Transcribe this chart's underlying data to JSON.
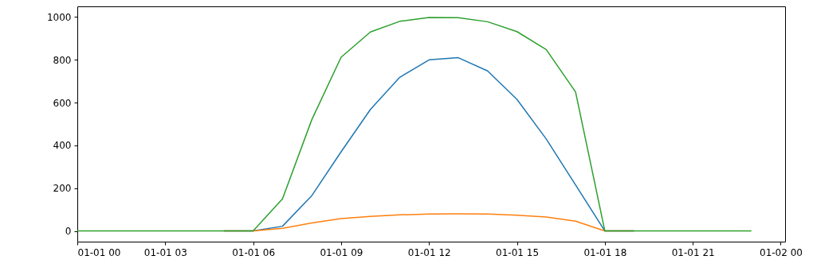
{
  "chart_data": {
    "type": "line",
    "x": [
      "--01-01T00:00",
      "--01-01T01:00",
      "--01-01T02:00",
      "--01-01T03:00",
      "--01-01T04:00",
      "--01-01T05:00",
      "--01-01T06:00",
      "--01-01T07:00",
      "--01-01T08:00",
      "--01-01T09:00",
      "--01-01T10:00",
      "--01-01T11:00",
      "--01-01T12:00",
      "--01-01T13:00",
      "--01-01T14:00",
      "--01-01T15:00",
      "--01-01T16:00",
      "--01-01T17:00",
      "--01-01T18:00",
      "--01-01T19:00",
      "--01-01T20:00",
      "--01-01T21:00",
      "--01-01T22:00",
      "--01-01T23:00"
    ],
    "series": [
      {
        "color": "#1f77b4",
        "values": [
          null,
          null,
          null,
          null,
          null,
          0,
          0,
          22,
          165,
          370,
          568,
          718,
          800,
          810,
          748,
          615,
          430,
          215,
          0,
          0,
          null,
          null,
          null,
          null
        ]
      },
      {
        "color": "#ff7f0e",
        "values": [
          null,
          null,
          null,
          null,
          null,
          0,
          0,
          12,
          37,
          58,
          68,
          75,
          79,
          80,
          79,
          74,
          65,
          46,
          0,
          0,
          null,
          null,
          null,
          null
        ]
      },
      {
        "color": "#2ca02c",
        "values": [
          0,
          0,
          0,
          0,
          0,
          0,
          0,
          150,
          520,
          812,
          930,
          980,
          998,
          997,
          978,
          932,
          848,
          650,
          0,
          0,
          0,
          0,
          0,
          0
        ]
      }
    ],
    "xlim": [
      "--01-01T00:00",
      "--01-02T00:09"
    ],
    "xticks": [
      {
        "value": "--01-01T00:00",
        "label": "01-01 00"
      },
      {
        "value": "--01-01T03:00",
        "label": "01-01 03"
      },
      {
        "value": "--01-01T06:00",
        "label": "01-01 06"
      },
      {
        "value": "--01-01T09:00",
        "label": "01-01 09"
      },
      {
        "value": "--01-01T12:00",
        "label": "01-01 12"
      },
      {
        "value": "--01-01T15:00",
        "label": "01-01 15"
      },
      {
        "value": "--01-01T18:00",
        "label": "01-01 18"
      },
      {
        "value": "--01-01T21:00",
        "label": "01-01 21"
      },
      {
        "value": "--01-02T00:00",
        "label": "01-02 00"
      }
    ],
    "ylim": [
      -50,
      1050
    ],
    "yticks": [
      0,
      200,
      400,
      600,
      800,
      1000
    ],
    "grid": false,
    "marker": "none",
    "line_style": "solid"
  }
}
